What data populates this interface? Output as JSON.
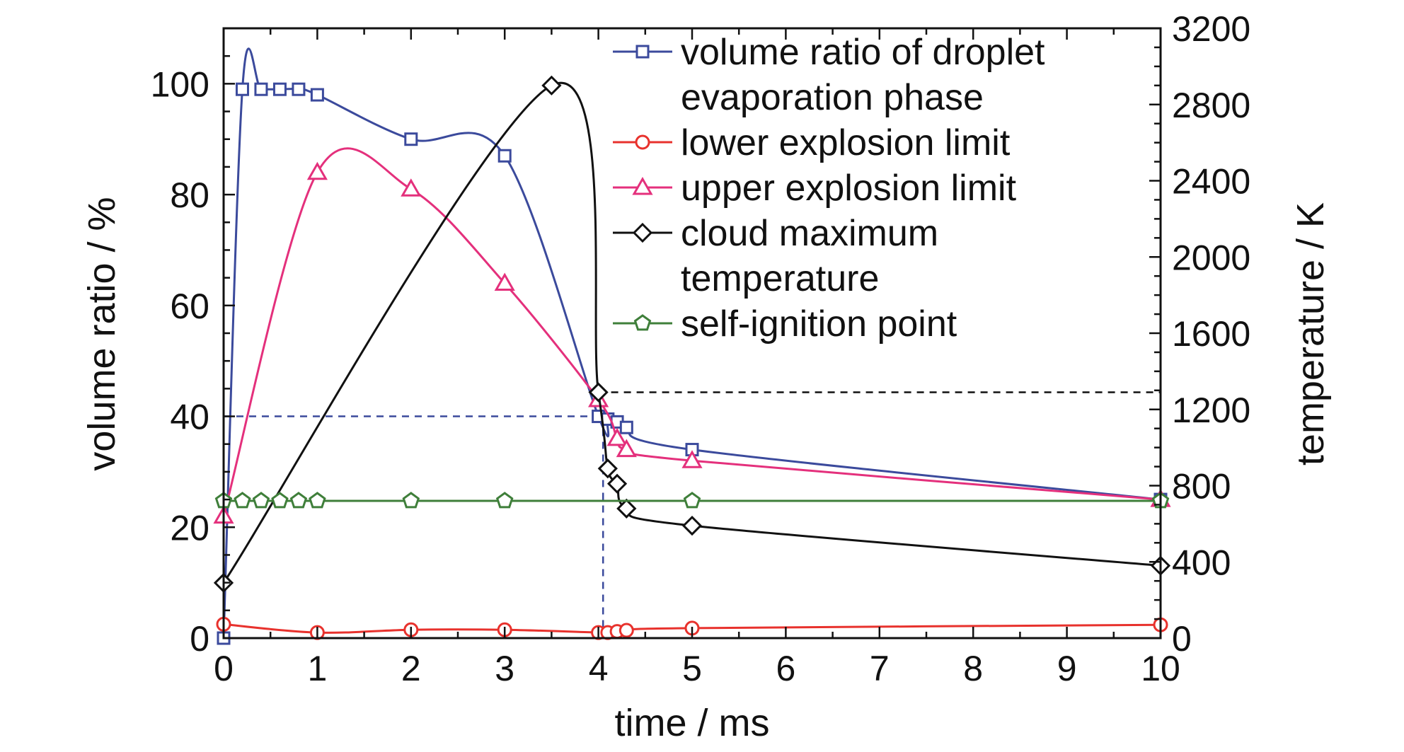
{
  "chart_data": {
    "type": "line",
    "xlabel": "time / ms",
    "ylabel_left": "volume ratio / %",
    "ylabel_right": "temperature / K",
    "xlim": [
      0,
      10
    ],
    "ylim_left": [
      0,
      110
    ],
    "ylim_right": [
      0,
      3200
    ],
    "x_ticks": [
      0,
      1,
      2,
      3,
      4,
      5,
      6,
      7,
      8,
      9,
      10
    ],
    "y_left_ticks": [
      0,
      20,
      40,
      60,
      80,
      100
    ],
    "y_right_ticks": [
      0,
      400,
      800,
      1200,
      1600,
      2000,
      2400,
      2800,
      3200
    ],
    "grid": false,
    "legend_position": "top-right",
    "series": [
      {
        "name_lines": [
          "volume ratio of droplet",
          "evaporation phase"
        ],
        "color": "#3b4a9c",
        "marker": "square",
        "axis": "left",
        "x": [
          0,
          0.2,
          0.4,
          0.6,
          0.8,
          1,
          2,
          3,
          4,
          4.1,
          4.2,
          4.3,
          5,
          10
        ],
        "y": [
          0,
          99,
          99,
          99,
          99,
          98,
          90,
          87,
          40,
          39.5,
          39,
          38,
          34,
          25
        ]
      },
      {
        "name": "lower explosion limit",
        "color": "#e8322d",
        "marker": "circle",
        "axis": "left",
        "x": [
          0,
          1,
          2,
          3,
          4,
          4.1,
          4.2,
          4.3,
          5,
          10
        ],
        "y": [
          2.5,
          1,
          1.5,
          1.5,
          1,
          1,
          1.2,
          1.4,
          1.8,
          2.4
        ]
      },
      {
        "name": "upper explosion limit",
        "color": "#e4307c",
        "marker": "triangle",
        "axis": "left",
        "x": [
          0,
          1,
          2,
          3,
          4,
          4.2,
          4.3,
          5,
          10
        ],
        "y": [
          22,
          84,
          81,
          64,
          43,
          36,
          34,
          32,
          25
        ]
      },
      {
        "name_lines": [
          "cloud maximum",
          "temperature"
        ],
        "color": "#111111",
        "marker": "diamond",
        "axis": "right",
        "x": [
          0,
          3.5,
          4,
          4.1,
          4.2,
          4.3,
          5,
          10
        ],
        "y": [
          290,
          2900,
          1290,
          890,
          810,
          680,
          590,
          380
        ]
      },
      {
        "name": "self-ignition point",
        "color": "#3f7f3a",
        "marker": "pentagon",
        "axis": "right",
        "x": [
          0,
          0.2,
          0.4,
          0.6,
          0.8,
          1,
          2,
          3,
          5,
          10
        ],
        "y": [
          720,
          720,
          720,
          720,
          720,
          720,
          720,
          720,
          720,
          720
        ]
      }
    ],
    "reference_lines": [
      {
        "color": "#3b4a9c",
        "axis": "left",
        "from_x": 0,
        "to_x": 4.05,
        "y": 40,
        "drop_to_axis": true
      },
      {
        "color": "#111111",
        "axis": "right",
        "from_x": 4,
        "to_x": 10,
        "y": 1290,
        "drop_to_axis": false
      }
    ]
  }
}
